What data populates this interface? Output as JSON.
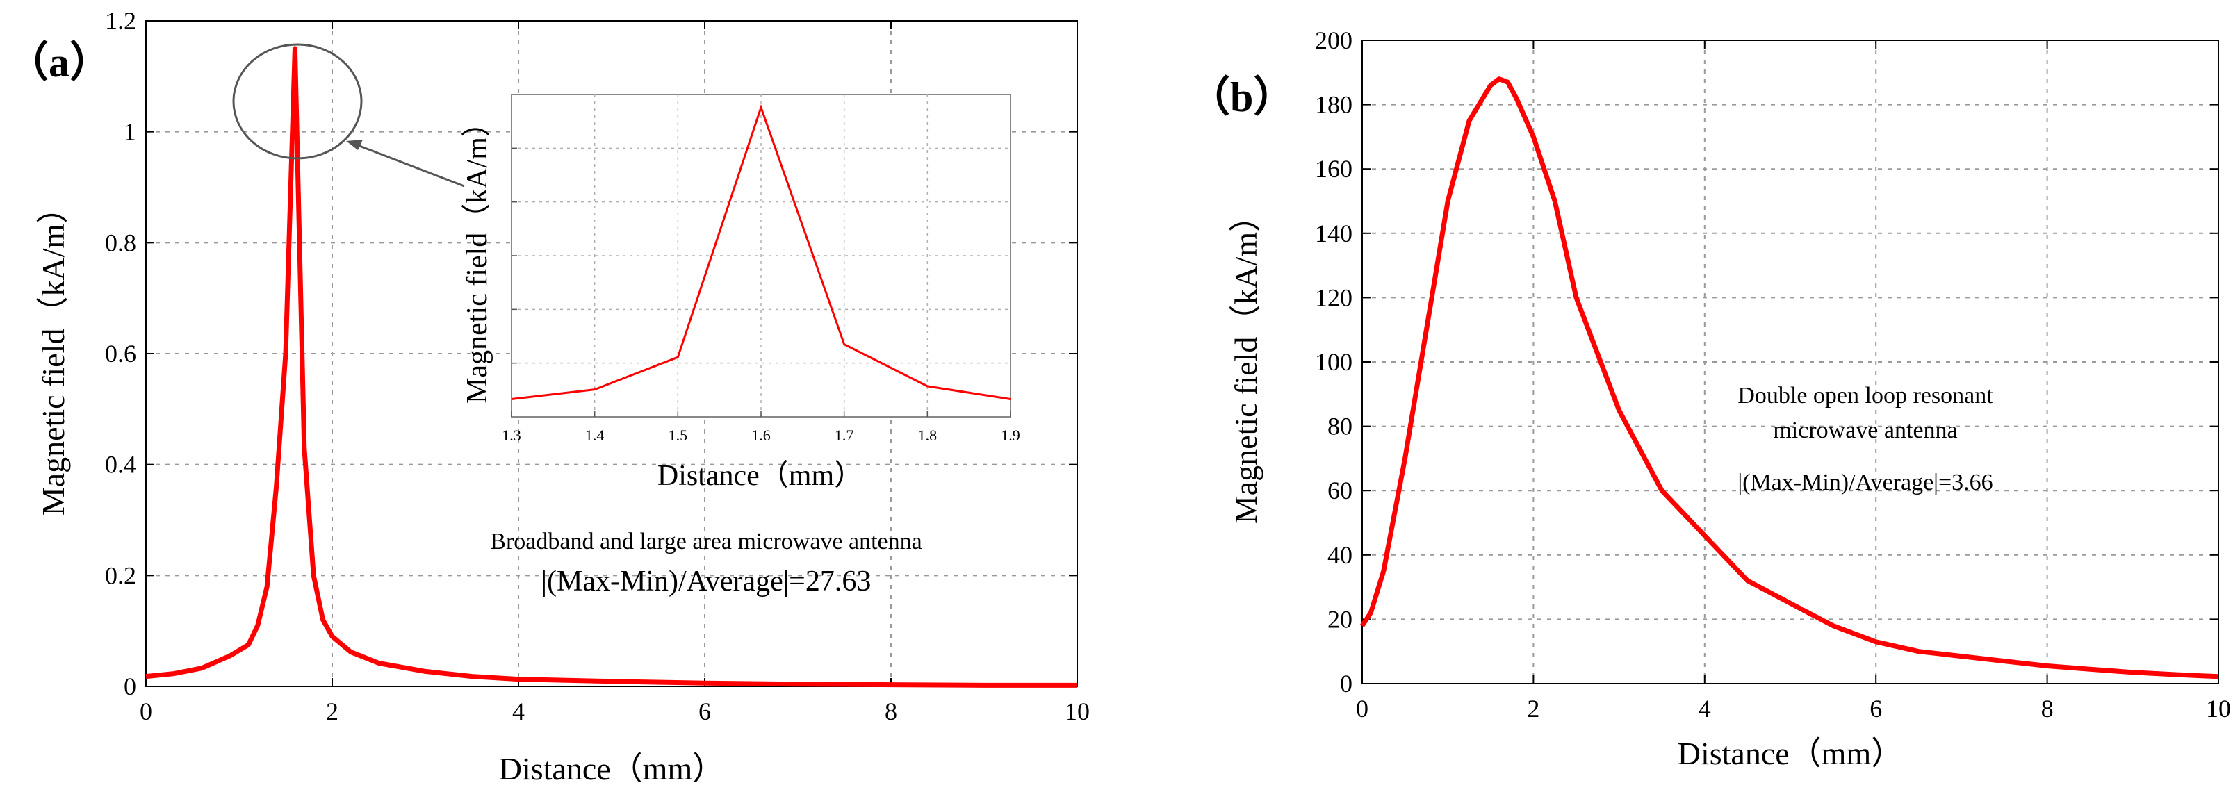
{
  "figure_domain": "Chart",
  "colors": {
    "series": "#ff0000",
    "grid": "#9a9a9a",
    "axis": "#000000",
    "box": "#888888"
  },
  "chart_data": [
    {
      "id": "a",
      "panel_label": "（a）",
      "type": "line",
      "xlabel": "Distance（mm）",
      "ylabel": "Magnetic field（kA/m）",
      "xlim": [
        0,
        10
      ],
      "ylim": [
        0,
        1.2
      ],
      "xticks": [
        "0",
        "2",
        "4",
        "6",
        "8",
        "10"
      ],
      "yticks": [
        "0",
        "0.2",
        "0.4",
        "0.6",
        "0.8",
        "1",
        "1.2"
      ],
      "grid": true,
      "annotation_line1": "Broadband and large area microwave antenna",
      "annotation_line2": "|(Max-Min)/Average|=27.63",
      "series": [
        {
          "name": "Broadband and large area microwave antenna",
          "x": [
            0,
            0.3,
            0.6,
            0.9,
            1.1,
            1.2,
            1.3,
            1.4,
            1.5,
            1.6,
            1.7,
            1.8,
            1.9,
            2.0,
            2.2,
            2.5,
            3.0,
            3.5,
            4.0,
            5.0,
            6.0,
            7.0,
            8.0,
            9.0,
            10.0
          ],
          "y": [
            0.018,
            0.023,
            0.033,
            0.055,
            0.075,
            0.11,
            0.18,
            0.36,
            0.6,
            1.15,
            0.43,
            0.2,
            0.12,
            0.09,
            0.062,
            0.042,
            0.027,
            0.018,
            0.013,
            0.009,
            0.006,
            0.004,
            0.003,
            0.002,
            0.002
          ]
        }
      ],
      "inset": {
        "type": "line",
        "xlabel": "Distance（mm）",
        "ylabel": "Magnetic field（kA/m）",
        "xlim": [
          1.3,
          1.9
        ],
        "xticks": [
          "1.3",
          "1.4",
          "1.5",
          "1.6",
          "1.7",
          "1.8",
          "1.9"
        ],
        "ylim": [
          0,
          1
        ],
        "x": [
          1.3,
          1.4,
          1.5,
          1.6,
          1.7,
          1.8,
          1.9
        ],
        "y": [
          0.055,
          0.085,
          0.185,
          0.96,
          0.225,
          0.095,
          0.055
        ]
      }
    },
    {
      "id": "b",
      "panel_label": "（b）",
      "type": "line",
      "xlabel": "Distance（mm）",
      "ylabel": "Magnetic field（kA/m）",
      "xlim": [
        0,
        10
      ],
      "ylim": [
        0,
        200
      ],
      "xticks": [
        "0",
        "2",
        "4",
        "6",
        "8",
        "10"
      ],
      "yticks": [
        "0",
        "20",
        "40",
        "60",
        "80",
        "100",
        "120",
        "140",
        "160",
        "180",
        "200"
      ],
      "grid": true,
      "annotation_line1": "Double open loop resonant",
      "annotation_line2": "microwave antenna",
      "annotation_line3": "|(Max-Min)/Average|=3.66",
      "series": [
        {
          "name": "Double open loop resonant microwave antenna",
          "x": [
            0,
            0.1,
            0.25,
            0.5,
            0.75,
            1.0,
            1.25,
            1.5,
            1.6,
            1.7,
            1.8,
            2.0,
            2.25,
            2.5,
            3.0,
            3.5,
            4.0,
            4.5,
            5.0,
            5.5,
            6.0,
            6.5,
            7.0,
            7.5,
            8.0,
            8.5,
            9.0,
            9.5,
            10.0
          ],
          "y": [
            18,
            22,
            35,
            70,
            110,
            150,
            175,
            186,
            188,
            187,
            182,
            170,
            150,
            120,
            85,
            60,
            46,
            32,
            25,
            18,
            13,
            10,
            8.5,
            7,
            5.5,
            4.5,
            3.5,
            2.8,
            2.2
          ]
        }
      ]
    }
  ]
}
